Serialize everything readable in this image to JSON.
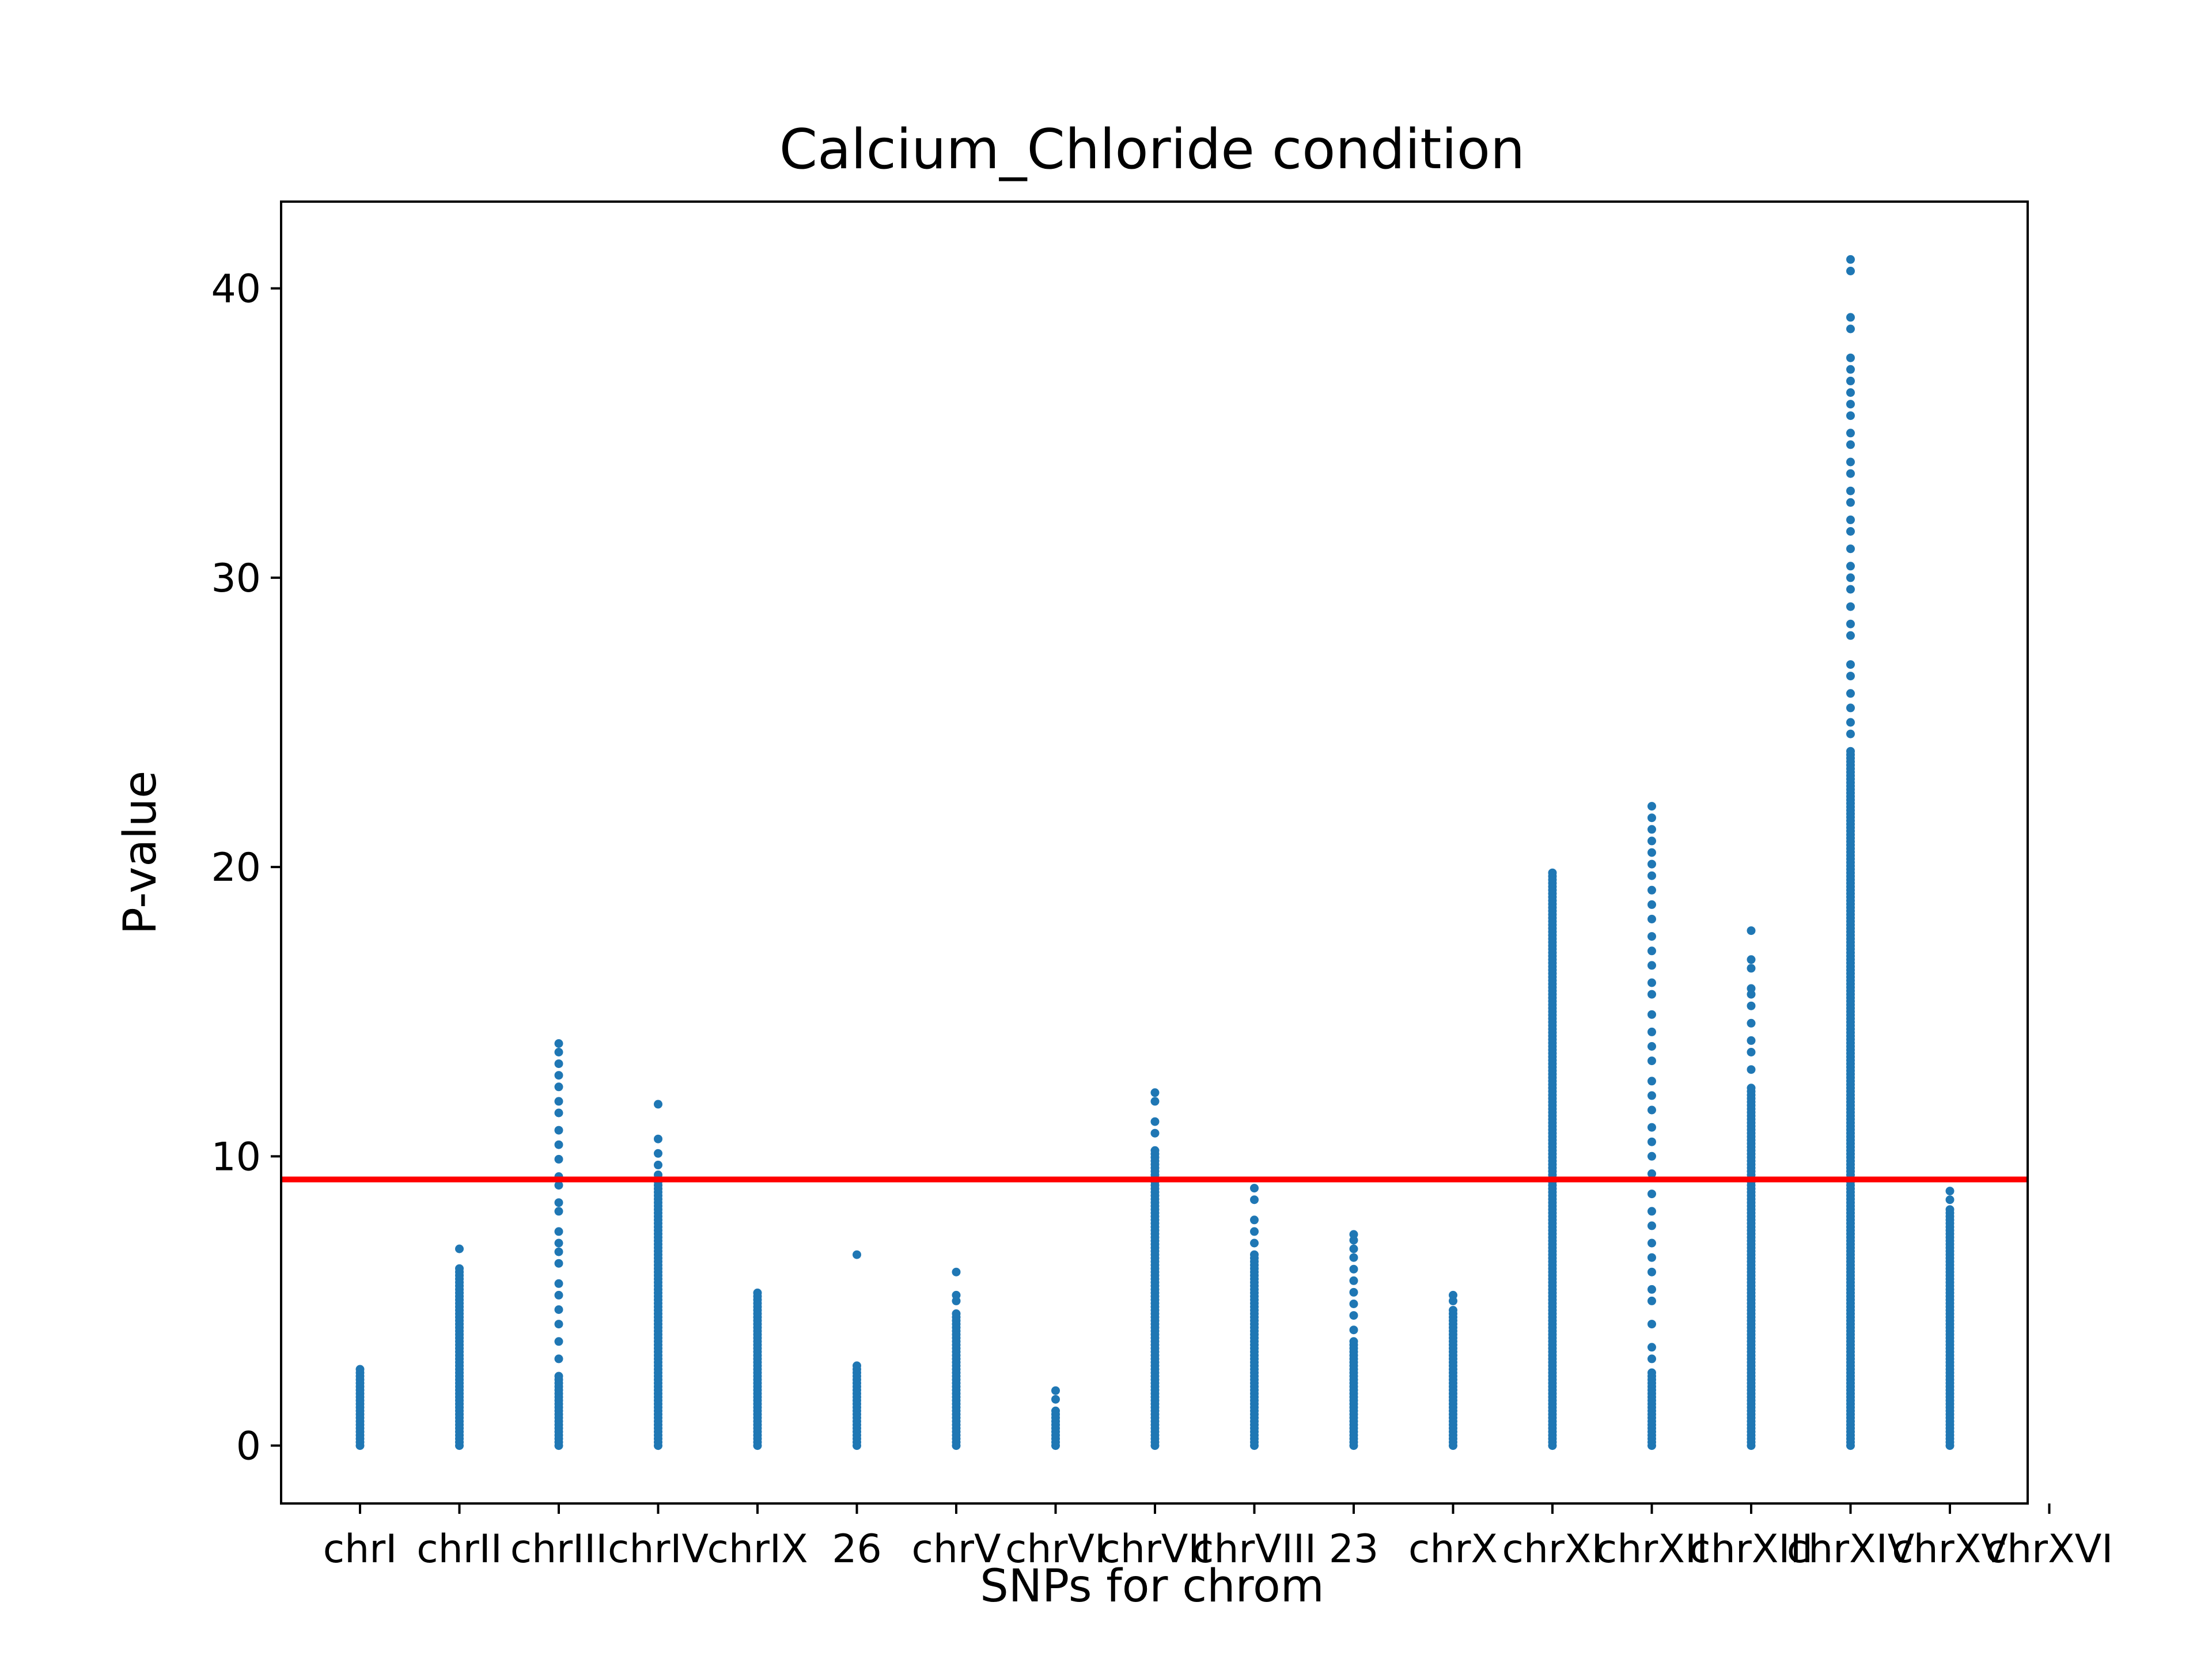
{
  "chart_data": {
    "type": "scatter",
    "title": "Calcium_Chloride condition",
    "xlabel": "SNPs for chrom",
    "ylabel": "P-value",
    "ylim": [
      -2,
      43
    ],
    "yticks": [
      0,
      10,
      20,
      30,
      40
    ],
    "grid": false,
    "legend": "none",
    "point_color": "#1f77b4",
    "threshold": {
      "y": 9.2,
      "color": "#ff0000"
    },
    "categories": [
      "chrI",
      "chrII",
      "chrIII",
      "chrIV",
      "chrIX",
      "26",
      "chrV",
      "chrVI",
      "chrVII",
      "chrVIII",
      "23",
      "chrX",
      "chrXI",
      "chrXII",
      "chrXIII",
      "chrXIV",
      "chrXV",
      "chrXVI"
    ],
    "tick_categories": [
      "chrI",
      "chrII",
      "chrIII",
      "chrIV",
      "chrIX",
      "26",
      "chrV",
      "chrVI",
      "chrVII",
      "chrVIII",
      "23",
      "chrX",
      "chrXI",
      "chrXII",
      "chrXIII",
      "chrXIV",
      "chrXV",
      "chrXVI"
    ],
    "series": [
      {
        "x": "chrI",
        "dense_max": 2.7,
        "outliers": []
      },
      {
        "x": "chrII",
        "dense_max": 6.2,
        "outliers": [
          6.8
        ]
      },
      {
        "x": "chrIII",
        "dense_max": 2.5,
        "outliers": [
          3.0,
          3.6,
          4.2,
          4.7,
          5.2,
          5.6,
          6.3,
          6.7,
          7.0,
          7.4,
          8.1,
          8.4,
          9.0,
          9.3,
          9.9,
          10.4,
          10.9,
          11.5,
          11.9,
          12.4,
          12.8,
          13.2,
          13.6,
          13.9
        ]
      },
      {
        "x": "chrIV",
        "dense_max": 9.4,
        "outliers": [
          9.7,
          10.1,
          10.6,
          11.8
        ]
      },
      {
        "x": "chrIX",
        "dense_max": 5.3,
        "outliers": []
      },
      {
        "x": "26",
        "dense_max": 2.8,
        "outliers": [
          6.6
        ]
      },
      {
        "x": "chrV",
        "dense_max": 4.6,
        "outliers": [
          5.0,
          5.2,
          6.0
        ]
      },
      {
        "x": "chrVI",
        "dense_max": 1.3,
        "outliers": [
          1.6,
          1.9
        ]
      },
      {
        "x": "chrVII",
        "dense_max": 10.3,
        "outliers": [
          10.8,
          11.2,
          11.9,
          12.2
        ]
      },
      {
        "x": "chrVIII",
        "dense_max": 6.6,
        "outliers": [
          7.0,
          7.4,
          7.8,
          8.5,
          8.9
        ]
      },
      {
        "x": "23",
        "dense_max": 3.6,
        "outliers": [
          4.0,
          4.5,
          4.9,
          5.3,
          5.7,
          6.1,
          6.5,
          6.8,
          7.1,
          7.3
        ]
      },
      {
        "x": "chrX",
        "dense_max": 4.7,
        "outliers": [
          5.0,
          5.2
        ]
      },
      {
        "x": "chrXI",
        "dense_max": 19.9,
        "outliers": []
      },
      {
        "x": "chrXII",
        "dense_max": 2.6,
        "outliers": [
          3.0,
          3.4,
          4.2,
          5.0,
          5.4,
          6.0,
          6.5,
          7.0,
          7.6,
          8.1,
          8.7,
          9.4,
          10.0,
          10.5,
          11.0,
          11.6,
          12.1,
          12.6,
          13.3,
          13.8,
          14.3,
          14.9,
          15.6,
          16.0,
          16.6,
          17.1,
          17.6,
          18.2,
          18.7,
          19.2,
          19.7,
          20.1,
          20.5,
          20.9,
          21.3,
          21.7,
          22.1
        ]
      },
      {
        "x": "chrXIII",
        "dense_max": 12.4,
        "outliers": [
          13.0,
          13.6,
          14.0,
          14.6,
          15.2,
          15.6,
          15.8,
          16.5,
          16.8,
          17.8
        ]
      },
      {
        "x": "chrXIV",
        "dense_max": 24.0,
        "outliers": [
          24.6,
          25.0,
          25.5,
          26.0,
          26.6,
          27.0,
          28.0,
          28.4,
          29.0,
          29.6,
          30.0,
          30.4,
          31.0,
          31.6,
          32.0,
          32.6,
          33.0,
          33.6,
          34.0,
          34.6,
          35.0,
          35.6,
          36.0,
          36.4,
          36.8,
          37.2,
          37.6,
          38.6,
          39.0,
          40.6,
          41.0
        ]
      },
      {
        "x": "chrXV",
        "dense_max": 8.2,
        "outliers": [
          8.5,
          8.8
        ]
      }
    ]
  }
}
